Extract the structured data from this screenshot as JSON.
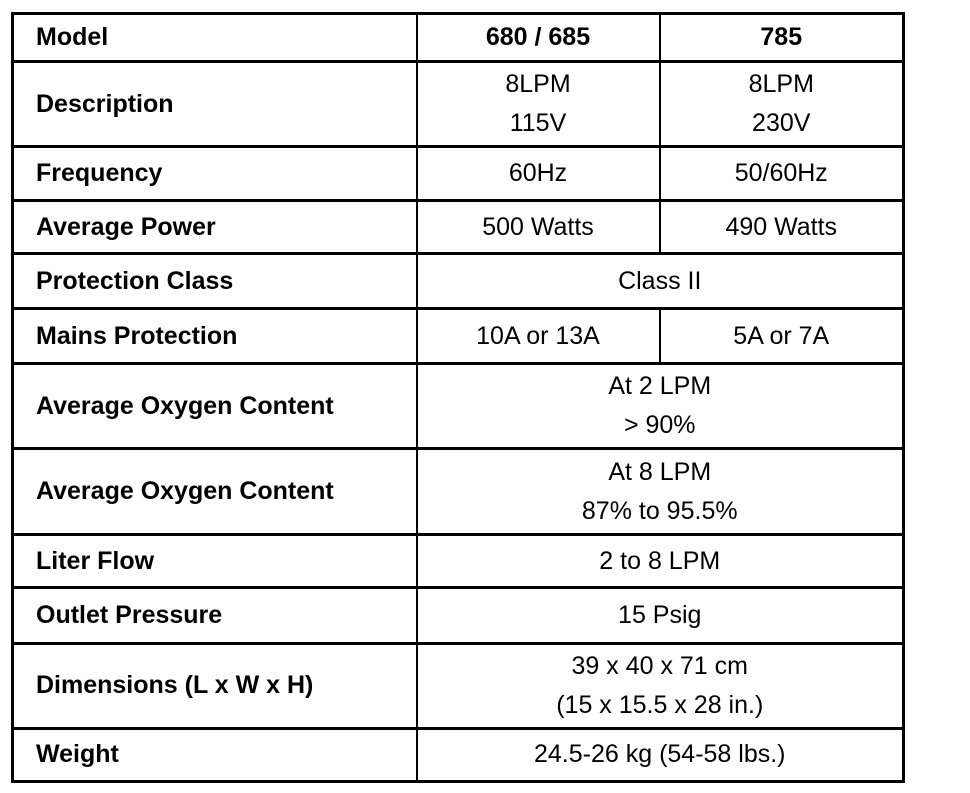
{
  "table": {
    "border_color": "#000000",
    "background_color": "#ffffff",
    "rows": [
      {
        "label": "Model",
        "cells": [
          "680 / 685",
          "785"
        ]
      },
      {
        "label": "Description",
        "cells": [
          "8LPM\n115V",
          "8LPM\n230V"
        ]
      },
      {
        "label": "Frequency",
        "cells": [
          "60Hz",
          "50/60Hz"
        ]
      },
      {
        "label": "Average Power",
        "cells": [
          "500 Watts",
          "490 Watts"
        ]
      },
      {
        "label": "Protection Class",
        "cells": [
          "Class II"
        ]
      },
      {
        "label": "Mains Protection",
        "cells": [
          "10A or 13A",
          "5A or 7A"
        ]
      },
      {
        "label": "Average Oxygen Content",
        "cells": [
          "At 2 LPM\n> 90%"
        ]
      },
      {
        "label": "Average Oxygen Content",
        "cells": [
          "At 8 LPM\n87% to 95.5%"
        ]
      },
      {
        "label": "Liter Flow",
        "cells": [
          "2 to 8 LPM"
        ]
      },
      {
        "label": "Outlet Pressure",
        "cells": [
          "15 Psig"
        ]
      },
      {
        "label": "Dimensions (L x W x H)",
        "cells": [
          "39 x 40 x 71 cm\n(15 x 15.5 x 28 in.)"
        ]
      },
      {
        "label": "Weight",
        "cells": [
          "24.5-26 kg (54-58 lbs.)"
        ]
      }
    ]
  }
}
